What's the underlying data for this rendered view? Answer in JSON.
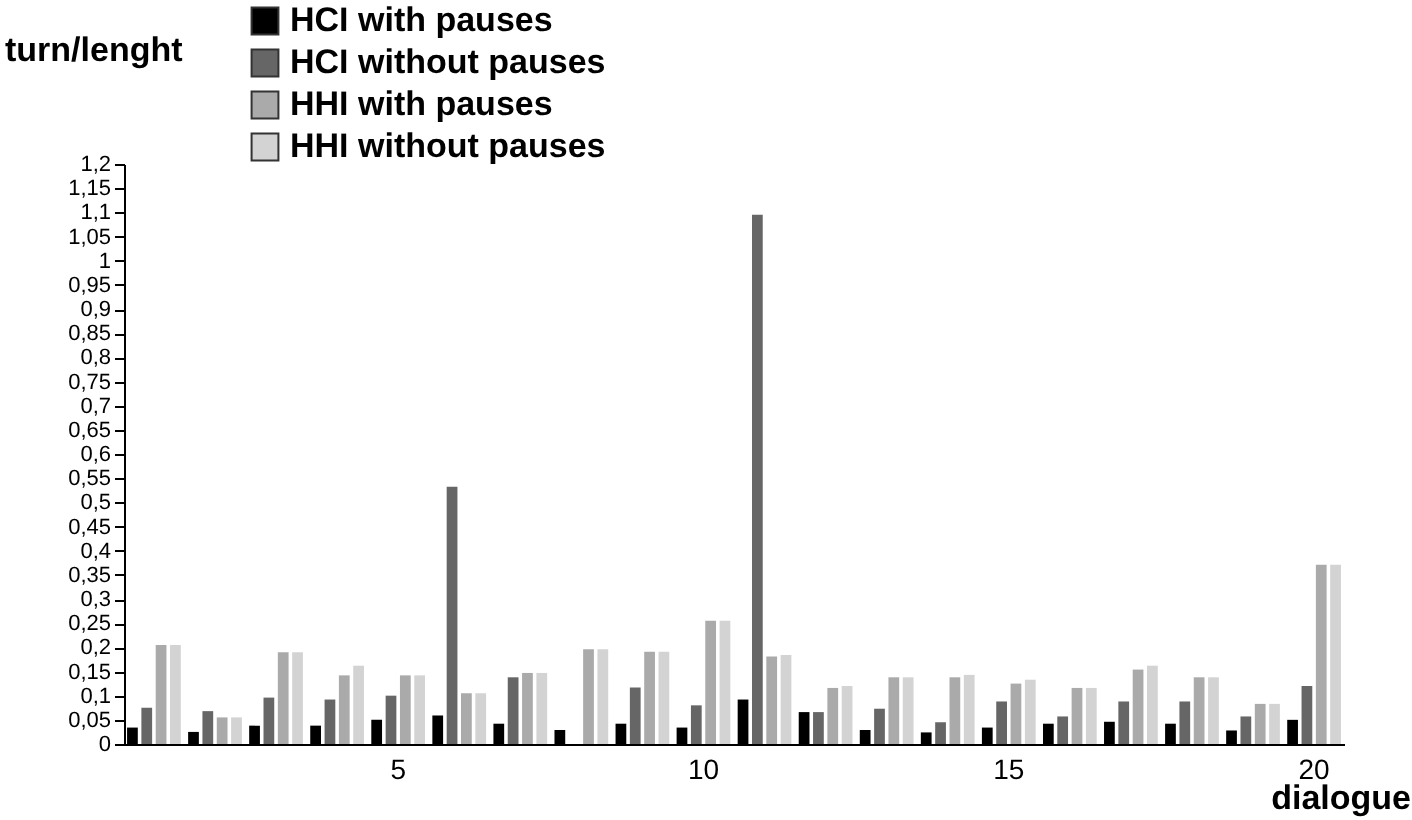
{
  "chart_data": {
    "type": "bar",
    "xlabel": "dialogue",
    "ylabel": "turn/lenght",
    "categories": [
      null,
      null,
      null,
      null,
      "5",
      null,
      null,
      null,
      null,
      "10",
      null,
      null,
      null,
      null,
      "15",
      null,
      null,
      null,
      null,
      "20"
    ],
    "series": [
      {
        "name": "HCI with pauses",
        "color": "#000000",
        "values": [
          0.034,
          0.025,
          0.038,
          0.038,
          0.05,
          0.059,
          0.042,
          0.029,
          0.042,
          0.034,
          0.092,
          0.066,
          0.029,
          0.024,
          0.034,
          0.042,
          0.046,
          0.042,
          0.028,
          0.05
        ]
      },
      {
        "name": "HCI without pauses",
        "color": "#666666",
        "values": [
          0.075,
          0.068,
          0.096,
          0.092,
          0.1,
          0.532,
          0.138,
          null,
          0.117,
          0.08,
          1.095,
          0.066,
          0.073,
          0.045,
          0.088,
          0.057,
          0.088,
          0.088,
          0.057,
          0.12
        ]
      },
      {
        "name": "HHI with pauses",
        "color": "#aaaaaa",
        "values": [
          0.205,
          0.055,
          0.19,
          0.142,
          0.142,
          0.105,
          0.147,
          0.196,
          0.191,
          0.255,
          0.181,
          0.116,
          0.138,
          0.138,
          0.125,
          0.116,
          0.154,
          0.138,
          0.083,
          0.371
        ]
      },
      {
        "name": "HHI without pauses",
        "color": "#d3d3d3",
        "values": [
          0.205,
          0.055,
          0.19,
          0.162,
          0.142,
          0.105,
          0.147,
          0.196,
          0.191,
          0.255,
          0.184,
          0.12,
          0.138,
          0.143,
          0.133,
          0.116,
          0.162,
          0.138,
          0.083,
          0.371
        ]
      }
    ],
    "ylim": [
      0,
      1.2
    ],
    "yticks": [
      0,
      {
        "value": 0.05,
        "label": "0,05"
      },
      {
        "value": 0.1,
        "label": "0,1"
      },
      {
        "value": 0.15,
        "label": "0,15"
      },
      {
        "value": 0.2,
        "label": "0,2"
      },
      {
        "value": 0.25,
        "label": "0,25"
      },
      {
        "value": 0.3,
        "label": "0,3"
      },
      {
        "value": 0.35,
        "label": "0,35"
      },
      {
        "value": 0.4,
        "label": "0,4"
      },
      {
        "value": 0.45,
        "label": "0,45"
      },
      {
        "value": 0.5,
        "label": "0,5"
      },
      {
        "value": 0.55,
        "label": "0,55"
      },
      {
        "value": 0.6,
        "label": "0,6"
      },
      {
        "value": 0.65,
        "label": "0,65"
      },
      {
        "value": 0.7,
        "label": "0,7"
      },
      {
        "value": 0.75,
        "label": "0,75"
      },
      {
        "value": 0.8,
        "label": "0,8"
      },
      {
        "value": 0.85,
        "label": "0,85"
      },
      {
        "value": 0.9,
        "label": "0,9"
      },
      {
        "value": 0.95,
        "label": "0,95"
      },
      1,
      {
        "value": 1.05,
        "label": "1,05"
      },
      {
        "value": 1.1,
        "label": "1,1"
      },
      {
        "value": 1.15,
        "label": "1,15"
      },
      {
        "value": 1.2,
        "label": "1,2"
      }
    ],
    "grid": false,
    "legend": "top"
  }
}
